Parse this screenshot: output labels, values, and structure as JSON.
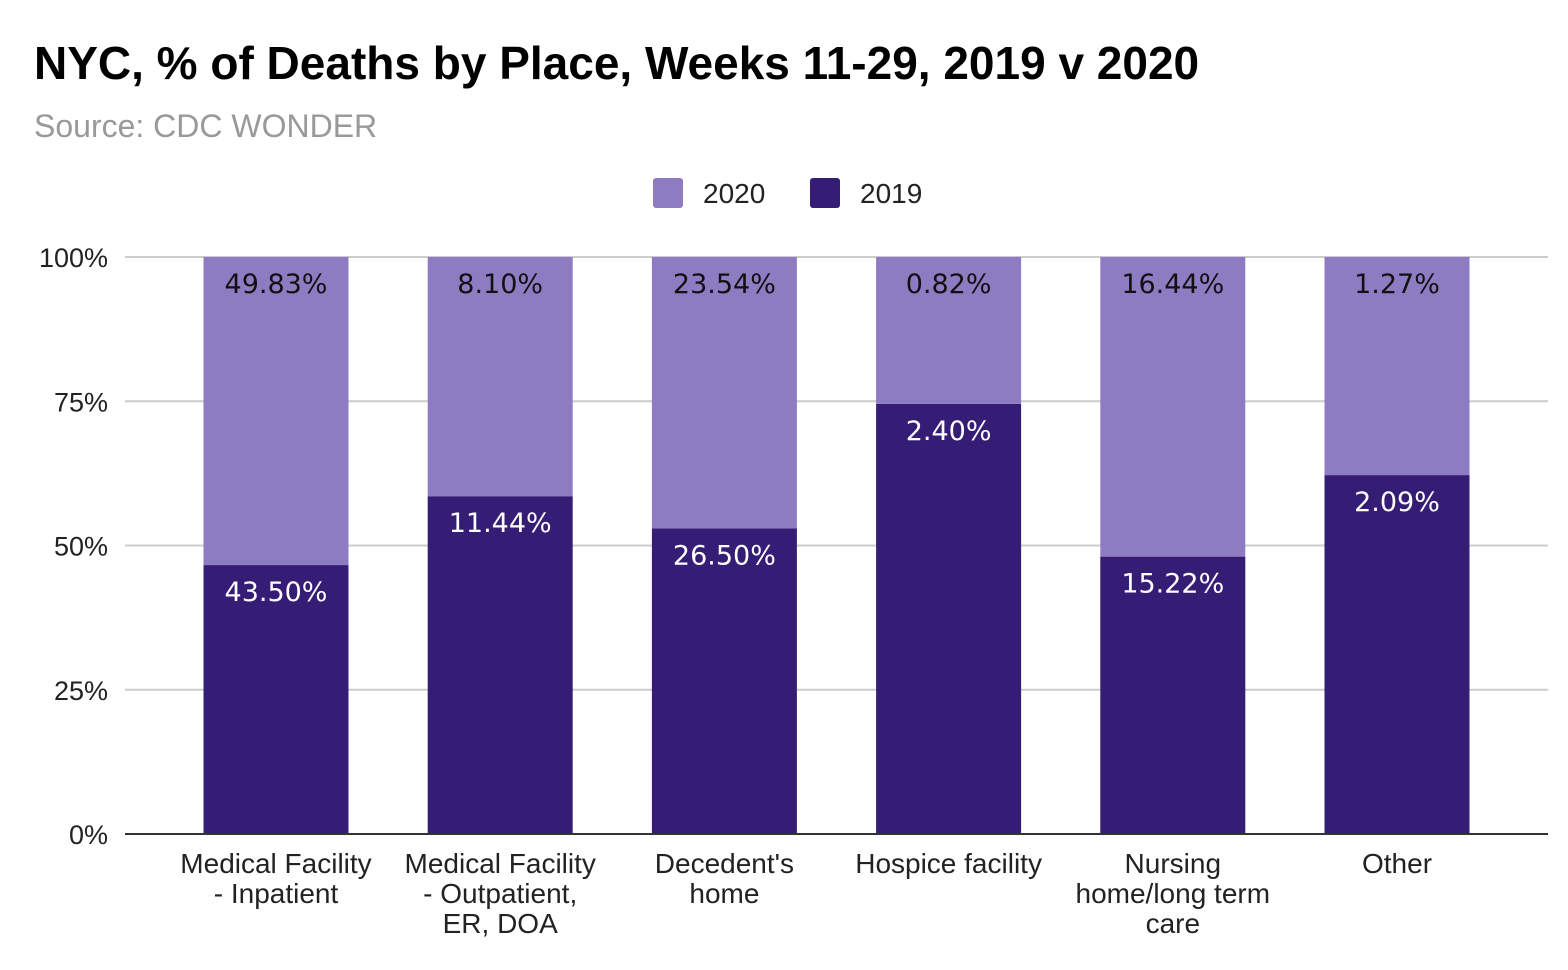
{
  "chart_data": {
    "type": "bar",
    "stacked": "percent",
    "title": "NYC, % of Deaths by Place, Weeks 11-29, 2019 v 2020",
    "subtitle": "Source: CDC WONDER",
    "categories": [
      [
        "Medical Facility",
        "- Inpatient"
      ],
      [
        "Medical Facility",
        "- Outpatient,",
        "ER, DOA"
      ],
      [
        "Decedent's",
        "home"
      ],
      [
        "Hospice facility"
      ],
      [
        "Nursing",
        "home/long term",
        "care"
      ],
      [
        "Other"
      ]
    ],
    "series": [
      {
        "name": "2019",
        "color": "#351c75",
        "values": [
          43.5,
          11.44,
          26.5,
          2.4,
          15.22,
          2.09
        ],
        "labels": [
          "43.50%",
          "11.44%",
          "26.50%",
          "2.40%",
          "15.22%",
          "2.09%"
        ]
      },
      {
        "name": "2020",
        "color": "#8e7cc3",
        "values": [
          49.83,
          8.1,
          23.54,
          0.82,
          16.44,
          1.27
        ],
        "labels": [
          "49.83%",
          "8.10%",
          "23.54%",
          "0.82%",
          "16.44%",
          "1.27%"
        ]
      }
    ],
    "legend_order": [
      "2020",
      "2019"
    ],
    "legend_position": "top",
    "yticks": [
      "0%",
      "25%",
      "50%",
      "75%",
      "100%"
    ],
    "ylim": [
      0,
      100
    ],
    "grid": true,
    "xlabel": "",
    "ylabel": ""
  }
}
